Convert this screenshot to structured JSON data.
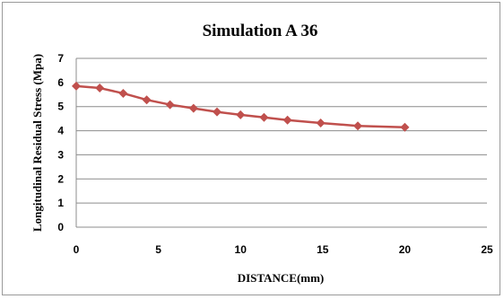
{
  "chart_data": {
    "type": "line",
    "title": "Simulation A 36",
    "xlabel": "DISTANCE(mm)",
    "ylabel": "Longitudinal Residual Stress (Mpa)",
    "xlim": [
      0,
      25
    ],
    "ylim": [
      0,
      7
    ],
    "xticks": [
      "0",
      "5",
      "10",
      "15",
      "20",
      "25"
    ],
    "yticks": [
      "0",
      "1",
      "2",
      "3",
      "4",
      "5",
      "6",
      "7"
    ],
    "grid": true,
    "legend": "none",
    "series": [
      {
        "color": "#c0504d",
        "marker": "diamond",
        "x": [
          0,
          1.43,
          2.86,
          4.29,
          5.71,
          7.14,
          8.57,
          10,
          11.43,
          12.86,
          14.88,
          17.14,
          20
        ],
        "y": [
          5.85,
          5.77,
          5.55,
          5.28,
          5.08,
          4.93,
          4.78,
          4.66,
          4.55,
          4.44,
          4.32,
          4.2,
          4.14
        ]
      }
    ]
  }
}
